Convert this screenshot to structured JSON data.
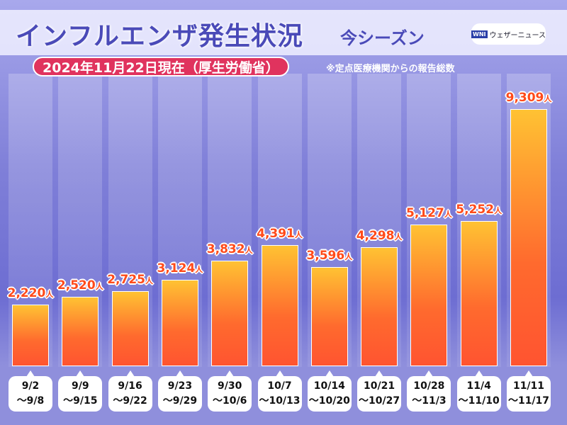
{
  "header": {
    "title": "インフルエンザ発生状況",
    "season": "今シーズン",
    "logo": "ウェザーニュース",
    "logo_mark": "WNI",
    "date": "2024年11月22日現在（厚生労働省）",
    "note": "※定点医療機関からの報告総数"
  },
  "chart_data": {
    "type": "bar",
    "title": "インフルエンザ発生状況 今シーズン",
    "unit": "人",
    "ylim": [
      0,
      9309
    ],
    "categories": [
      [
        "9/2",
        "～9/8"
      ],
      [
        "9/9",
        "～9/15"
      ],
      [
        "9/16",
        "～9/22"
      ],
      [
        "9/23",
        "～9/29"
      ],
      [
        "9/30",
        "～10/6"
      ],
      [
        "10/7",
        "～10/13"
      ],
      [
        "10/14",
        "～10/20"
      ],
      [
        "10/21",
        "～10/27"
      ],
      [
        "10/28",
        "～11/3"
      ],
      [
        "11/4",
        "～11/10"
      ],
      [
        "11/11",
        "～11/17"
      ]
    ],
    "values": [
      2220,
      2520,
      2725,
      3124,
      3832,
      4391,
      3596,
      4298,
      5127,
      5252,
      9309
    ]
  }
}
